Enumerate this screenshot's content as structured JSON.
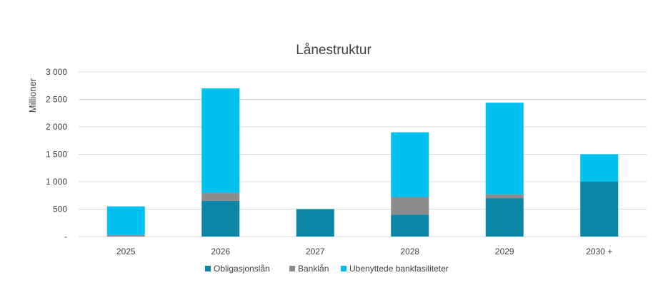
{
  "chart_data": {
    "type": "bar",
    "stacked": true,
    "title": "Lånestruktur",
    "xlabel": "",
    "ylabel": "Millioner",
    "categories": [
      "2025",
      "2026",
      "2027",
      "2028",
      "2029",
      "2030 +"
    ],
    "series": [
      {
        "name": "Obligasjonslån",
        "color": "#0b86a6",
        "values": [
          0,
          650,
          500,
          400,
          700,
          1000
        ]
      },
      {
        "name": "Banklån",
        "color": "#8c8c8c",
        "values": [
          30,
          150,
          0,
          320,
          70,
          0
        ]
      },
      {
        "name": "Ubenyttede bankfasiliteter",
        "color": "#00c0f0",
        "values": [
          520,
          1900,
          0,
          1180,
          1670,
          500
        ]
      }
    ],
    "ylim": [
      0,
      3000
    ],
    "yticks": [
      0,
      500,
      1000,
      1500,
      2000,
      2500,
      3000
    ],
    "ytick_labels": [
      "-",
      "500",
      "1 000",
      "1 500",
      "2 000",
      "2 500",
      "3 000"
    ],
    "grid": true,
    "legend_position": "bottom"
  }
}
